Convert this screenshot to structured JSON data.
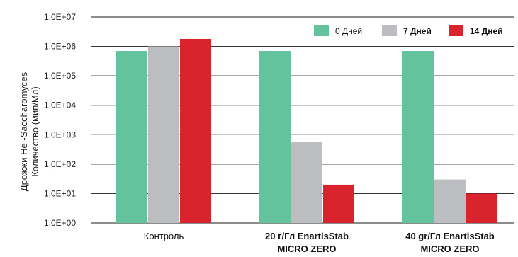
{
  "chart_data": {
    "type": "bar",
    "yscale": "log",
    "ylim": [
      1,
      10000000
    ],
    "yticks": [
      "1,0E+00",
      "1,0E+01",
      "1,0E+02",
      "1,0E+03",
      "1,0E+04",
      "1,0E+05",
      "1,0E+06",
      "1,0E+07"
    ],
    "ylabel_line1": "Дрожжи Не -Saccharomyces",
    "ylabel_line2": "Количество (мип/Мл)",
    "categories": [
      {
        "line1": "Контроль",
        "line2": "",
        "bold": false
      },
      {
        "line1": "20 г/Гл EnartisStab",
        "line2": "MICRO ZERO",
        "bold": true
      },
      {
        "line1": "40 gr/Гл EnartisStab",
        "line2": "MICRO ZERO",
        "bold": true
      }
    ],
    "series": [
      {
        "name": "0 Дней",
        "color": "#63c39c",
        "bold": false,
        "values": [
          700000,
          700000,
          700000
        ]
      },
      {
        "name": "7 Дней",
        "color": "#bcbdc0",
        "bold": true,
        "values": [
          1000000,
          550,
          30
        ]
      },
      {
        "name": "14 Дней",
        "color": "#d9242e",
        "bold": true,
        "values": [
          1800000,
          20,
          10
        ]
      }
    ],
    "legend_position": "top-right",
    "grid": true
  }
}
